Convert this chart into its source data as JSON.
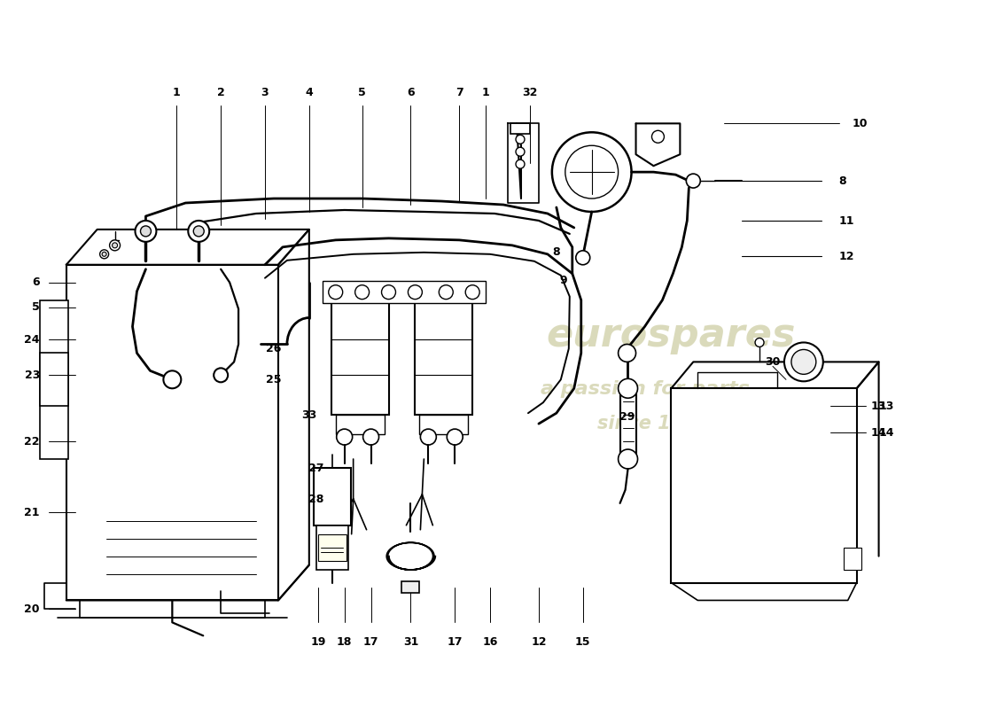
{
  "bg_color": "#ffffff",
  "line_color": "#000000",
  "lw_main": 1.4,
  "lw_thin": 0.8,
  "lw_hose": 2.0,
  "label_fontsize": 9,
  "watermark": {
    "line1": "eurospares",
    "line2": "a passion for parts",
    "line3": "since 1985",
    "color": "#d4d4b0",
    "alpha": 0.85,
    "fs1": 32,
    "fs2": 16,
    "fs3": 15
  }
}
